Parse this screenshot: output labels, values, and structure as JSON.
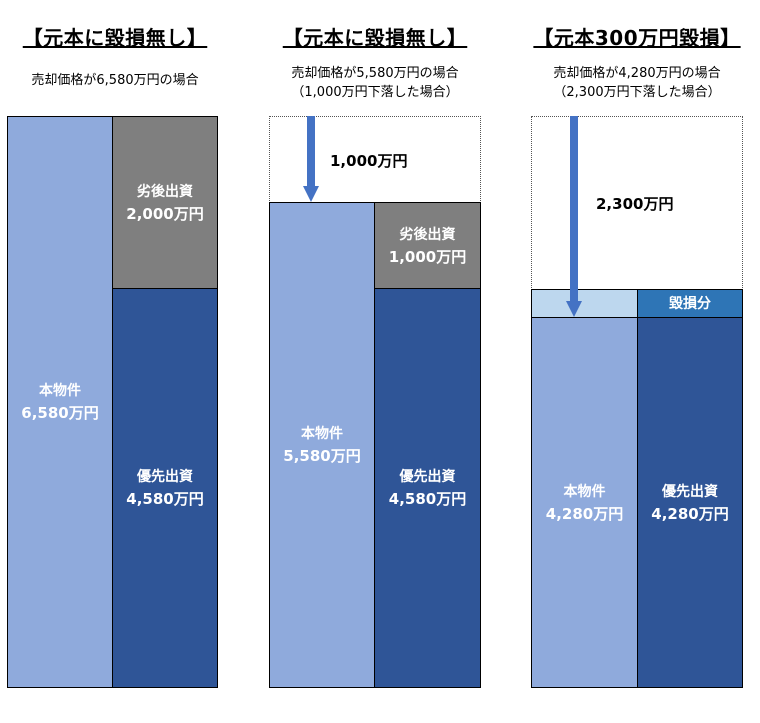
{
  "panels": [
    {
      "title": "【元本に毀損無し】",
      "subtitle_lines": [
        "売却価格が6,580万円の場合"
      ],
      "property": {
        "label": "本物件",
        "amount": "6,580万円"
      },
      "junior": {
        "label": "劣後出資",
        "amount": "2,000万円"
      },
      "senior": {
        "label": "優先出資",
        "amount": "4,580万円"
      }
    },
    {
      "title": "【元本に毀損無し】",
      "subtitle_lines": [
        "売却価格が5,580万円の場合",
        "（1,000万円下落した場合）"
      ],
      "drop": "1,000万円",
      "property": {
        "label": "本物件",
        "amount": "5,580万円"
      },
      "junior": {
        "label": "劣後出資",
        "amount": "1,000万円"
      },
      "senior": {
        "label": "優先出資",
        "amount": "4,580万円"
      }
    },
    {
      "title": "【元本300万円毀損】",
      "subtitle_lines": [
        "売却価格が4,280万円の場合",
        "（2,300万円下落した場合）"
      ],
      "drop": "2,300万円",
      "loss": "毀損分",
      "property": {
        "label": "本物件",
        "amount": "4,280万円"
      },
      "senior": {
        "label": "優先出資",
        "amount": "4,280万円"
      }
    }
  ],
  "colors": {
    "property": "#8faadc",
    "junior": "#7f7f7f",
    "senior": "#2f5597",
    "loss_zone": "#bdd7ee",
    "loss_label": "#2e75b6",
    "arrow": "#4472c4"
  },
  "icons": [
    "down-arrow-icon"
  ]
}
